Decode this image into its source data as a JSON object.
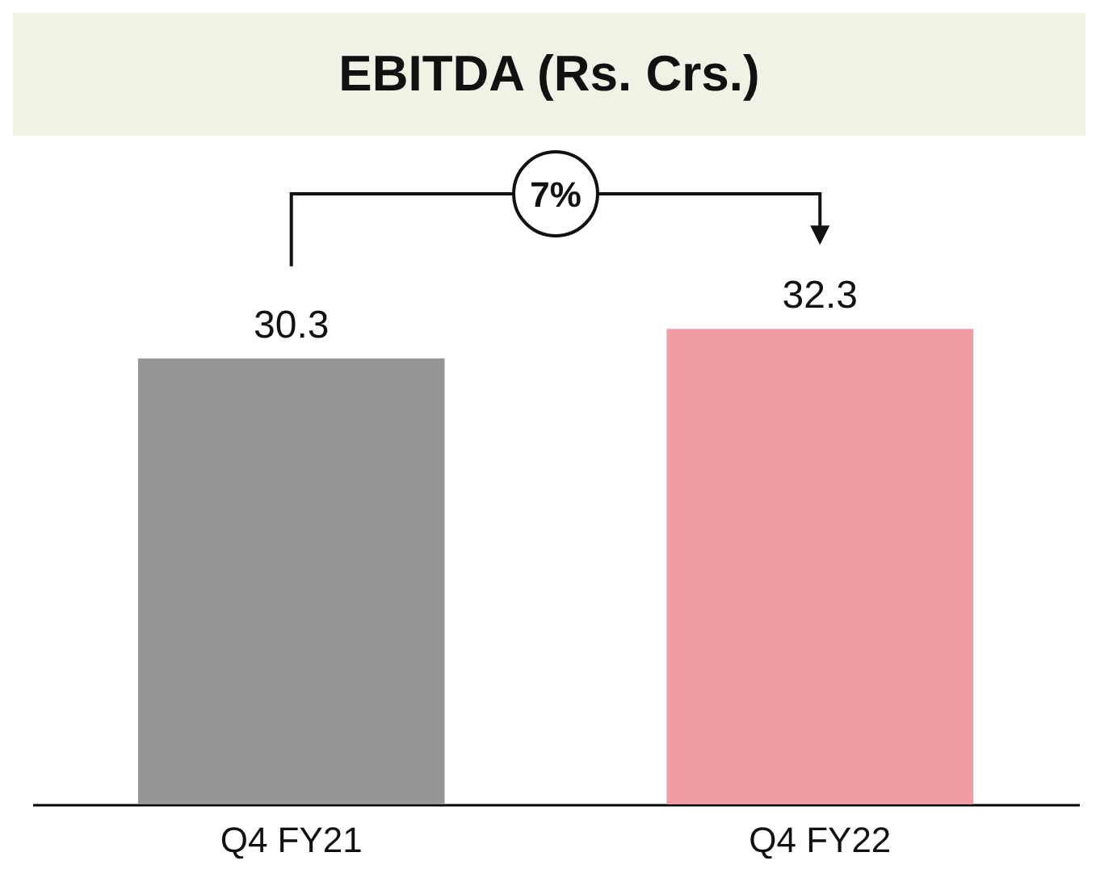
{
  "chart_data": {
    "type": "bar",
    "title": "EBITDA (Rs. Crs.)",
    "categories": [
      "Q4 FY21",
      "Q4 FY22"
    ],
    "values": [
      30.3,
      32.3
    ],
    "colors": [
      "#969696",
      "#f09ca3"
    ],
    "data_labels": true,
    "annotations": [
      "7%"
    ]
  }
}
